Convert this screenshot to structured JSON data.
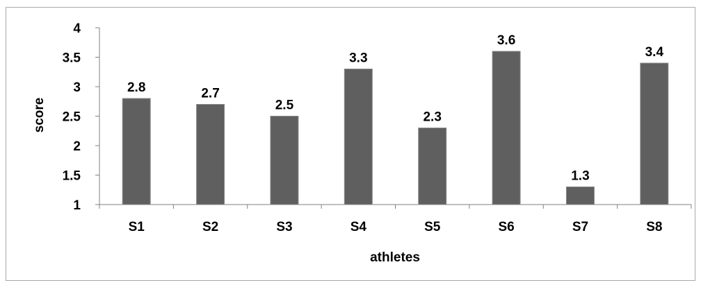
{
  "chart_data": {
    "type": "bar",
    "title": "",
    "xlabel": "athletes",
    "ylabel": "score",
    "categories": [
      "S1",
      "S2",
      "S3",
      "S4",
      "S5",
      "S6",
      "S7",
      "S8"
    ],
    "values": [
      2.8,
      2.7,
      2.5,
      3.3,
      2.3,
      3.6,
      1.3,
      3.4
    ],
    "data_labels": [
      "2.8",
      "2.7",
      "2.5",
      "3.3",
      "2.3",
      "3.6",
      "1.3",
      "3.4"
    ],
    "ylim": [
      1,
      4
    ],
    "yticks": [
      1,
      1.5,
      2,
      2.5,
      3,
      3.5,
      4
    ],
    "ytick_labels": [
      "1",
      "1.5",
      "2",
      "2.5",
      "3",
      "3.5",
      "4"
    ],
    "grid": false,
    "legend": "none",
    "colors": {
      "bar": "#5f5f5f",
      "bar_highlight": "#8a8a8a",
      "axis": "#808080",
      "frame": "#a8a8a8"
    }
  }
}
